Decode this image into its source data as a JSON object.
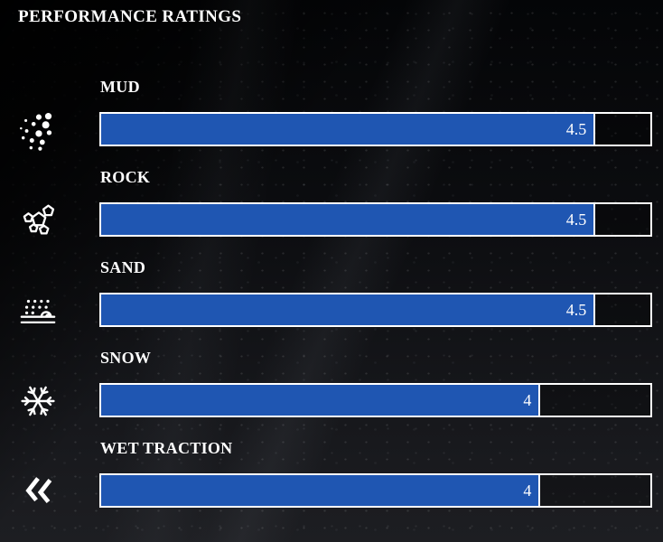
{
  "title": "PERFORMANCE RATINGS",
  "colors": {
    "background": "#0b0c0e",
    "bar_fill": "#1f56b2",
    "bar_border": "#ffffff",
    "text": "#ffffff"
  },
  "chart_data": {
    "type": "bar",
    "orientation": "horizontal",
    "title": "PERFORMANCE RATINGS",
    "max_rating": 5,
    "categories": [
      "MUD",
      "ROCK",
      "SAND",
      "SNOW",
      "WET TRACTION"
    ],
    "values": [
      4.5,
      4.5,
      4.5,
      4,
      4
    ],
    "value_labels": [
      "4.5",
      "4.5",
      "4.5",
      "4",
      "4"
    ],
    "icons": [
      "mud-splatter-icon",
      "rocks-icon",
      "sand-icon",
      "snowflake-icon",
      "wet-traction-skid-icon"
    ],
    "grid": false,
    "legend": "none"
  }
}
